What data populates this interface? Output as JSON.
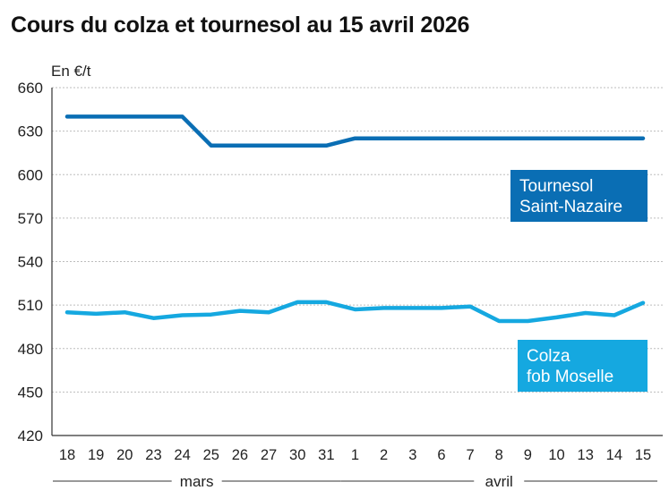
{
  "chart_data": {
    "type": "line",
    "title": "Cours du colza et tournesol au 15 avril 2026",
    "ylabel": "En €/t",
    "ylim": [
      420,
      660
    ],
    "yticks": [
      420,
      450,
      480,
      510,
      540,
      570,
      600,
      630,
      660
    ],
    "categories": [
      "18",
      "19",
      "20",
      "23",
      "24",
      "25",
      "26",
      "27",
      "30",
      "31",
      "1",
      "2",
      "3",
      "6",
      "7",
      "8",
      "9",
      "10",
      "13",
      "14",
      "15"
    ],
    "month_groups": [
      {
        "label": "mars",
        "start": 0,
        "end": 9
      },
      {
        "label": "avril",
        "start": 10,
        "end": 20
      }
    ],
    "grid": true,
    "series": [
      {
        "name_lines": [
          "Tournesol",
          "Saint-Nazaire"
        ],
        "color": "#0a6eb4",
        "values": [
          640,
          640,
          640,
          640,
          640,
          620,
          620,
          620,
          620,
          620,
          625,
          625,
          625,
          625,
          625,
          625,
          625,
          625,
          625,
          625,
          625
        ]
      },
      {
        "name_lines": [
          "Colza",
          "fob Moselle"
        ],
        "color": "#15a8e0",
        "values": [
          505,
          504,
          505,
          501,
          503,
          503.5,
          506,
          505,
          512,
          512,
          507,
          508,
          508,
          508,
          509,
          499,
          499,
          501.5,
          504.5,
          503,
          511.5
        ]
      }
    ]
  }
}
